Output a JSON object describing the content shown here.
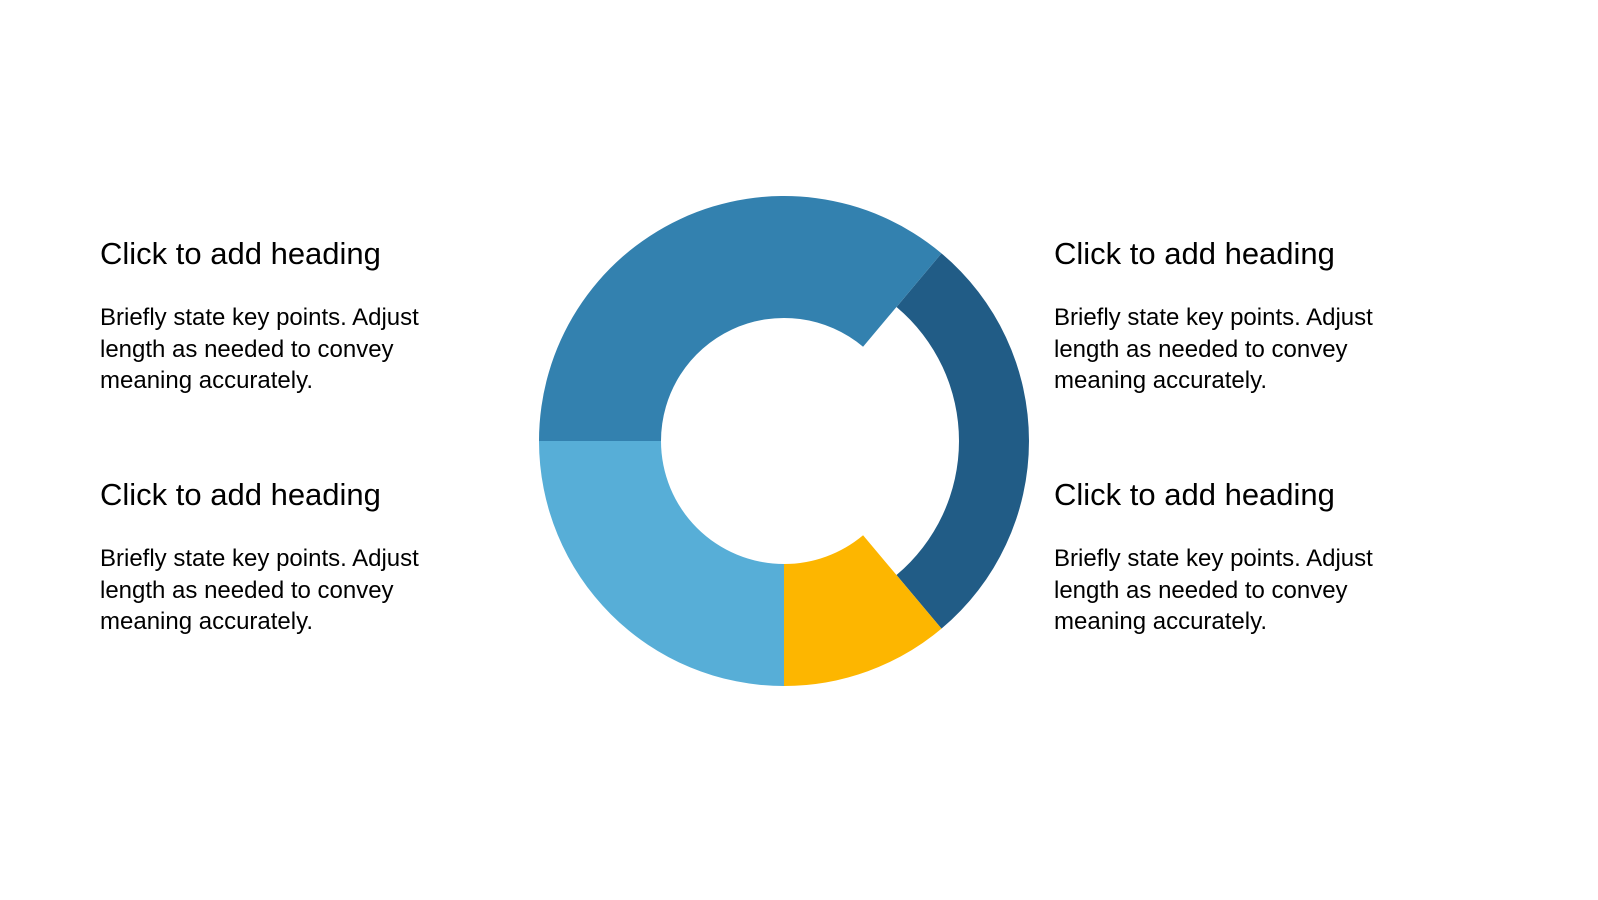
{
  "blocks": {
    "top_left": {
      "heading": "Click to add heading",
      "body": "Briefly state key points. Adjust length as needed to convey meaning accurately."
    },
    "top_right": {
      "heading": "Click to add heading",
      "body": "Briefly state key points. Adjust length as needed to convey meaning accurately."
    },
    "bottom_left": {
      "heading": "Click to add heading",
      "body": "Briefly state key points. Adjust length as needed to convey meaning accurately."
    },
    "bottom_right": {
      "heading": "Click to add heading",
      "body": "Briefly state key points. Adjust length as needed to convey meaning accurately."
    }
  },
  "donut": {
    "segments": [
      {
        "id": "dark-blue",
        "start_deg": 40,
        "end_deg": 140,
        "color": "#215C86",
        "inset": true
      },
      {
        "id": "yellow",
        "start_deg": 140,
        "end_deg": 180,
        "color": "#FDB600",
        "inset": false
      },
      {
        "id": "light-blue",
        "start_deg": 180,
        "end_deg": 270,
        "color": "#57AED7",
        "inset": false
      },
      {
        "id": "medium-blue",
        "start_deg": 270,
        "end_deg": 400,
        "color": "#3381AF",
        "inset": false
      }
    ]
  }
}
